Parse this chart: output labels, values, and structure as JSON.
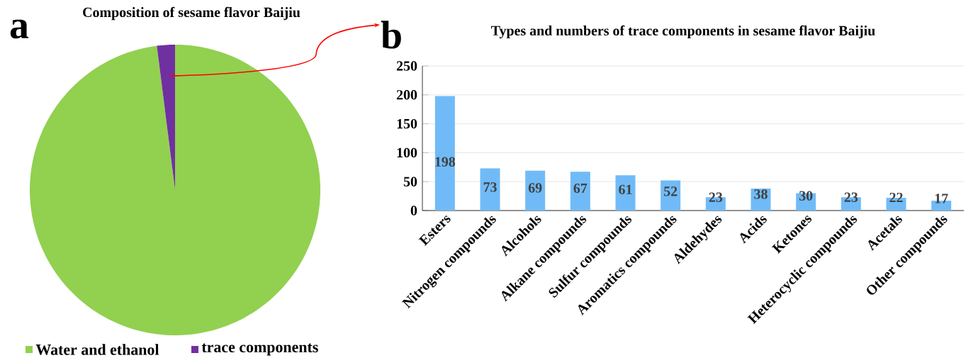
{
  "chart_data": [
    {
      "type": "pie",
      "title": "Composition of sesame flavor Baijiu",
      "categories": [
        "Water and ethanol",
        "trace components"
      ],
      "values": [
        98,
        2
      ],
      "colors": [
        "#92d050",
        "#7030a0"
      ],
      "legend": "bottom",
      "annotations": [
        "a"
      ]
    },
    {
      "type": "bar",
      "title": "Types and numbers of trace components in sesame flavor Baijiu",
      "categories": [
        "Esters",
        "Nitrogen compounds",
        "Alcohols",
        "Alkane compounds",
        "Sulfur compounds",
        "Aromatics compounds",
        "Aldehydes",
        "Acids",
        "Ketones",
        "Heterocyclic compounds",
        "Acetals",
        "Other compounds"
      ],
      "values": [
        198,
        73,
        69,
        67,
        61,
        52,
        23,
        38,
        30,
        23,
        22,
        17
      ],
      "color": "#70bbf7",
      "ylim": [
        0,
        250
      ],
      "yticks": [
        0,
        50,
        100,
        150,
        200,
        250
      ],
      "grid": "y",
      "data_labels": true,
      "annotations": [
        "b"
      ]
    }
  ]
}
